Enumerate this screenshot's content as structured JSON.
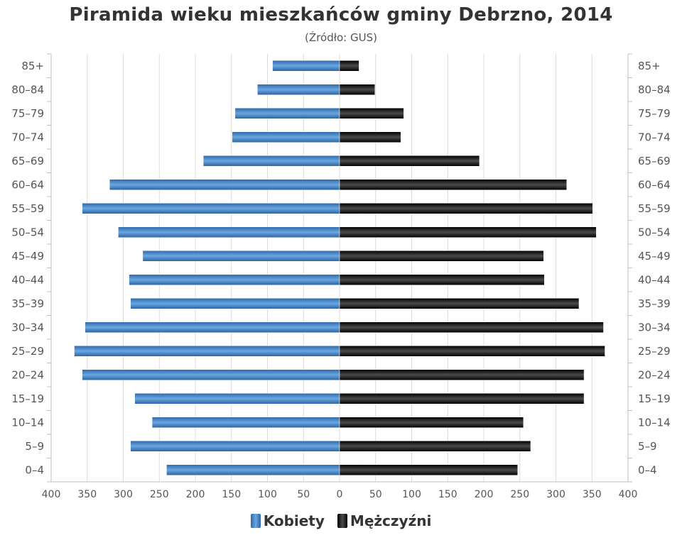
{
  "chart_data": {
    "type": "bar",
    "orientation": "horizontal",
    "layout": "population-pyramid",
    "title": "Piramida wieku mieszkańców gminy Debrzno, 2014",
    "subtitle": "(Źródło: GUS)",
    "categories": [
      "85+",
      "80–84",
      "75–79",
      "70–74",
      "65–69",
      "60–64",
      "55–59",
      "50–54",
      "45–49",
      "40–44",
      "35–39",
      "30–34",
      "25–29",
      "20–24",
      "15–19",
      "10–14",
      "5–9",
      "0–4"
    ],
    "series": [
      {
        "name": "Kobiety",
        "color": "#3f7fc1",
        "side": "left",
        "values": [
          93,
          114,
          145,
          149,
          189,
          319,
          357,
          307,
          273,
          292,
          290,
          353,
          368,
          357,
          284,
          260,
          290,
          240
        ]
      },
      {
        "name": "Mężczyźni",
        "color": "#1a1a1a",
        "side": "right",
        "values": [
          27,
          49,
          89,
          85,
          194,
          315,
          351,
          356,
          283,
          284,
          332,
          366,
          368,
          339,
          339,
          255,
          265,
          247
        ]
      }
    ],
    "xlim": [
      -400,
      400
    ],
    "xticks": [
      "400",
      "350",
      "300",
      "250",
      "200",
      "150",
      "100",
      "50",
      "0",
      "50",
      "100",
      "150",
      "200",
      "250",
      "300",
      "350",
      "400"
    ],
    "grid": true,
    "legend": "bottom-center"
  }
}
